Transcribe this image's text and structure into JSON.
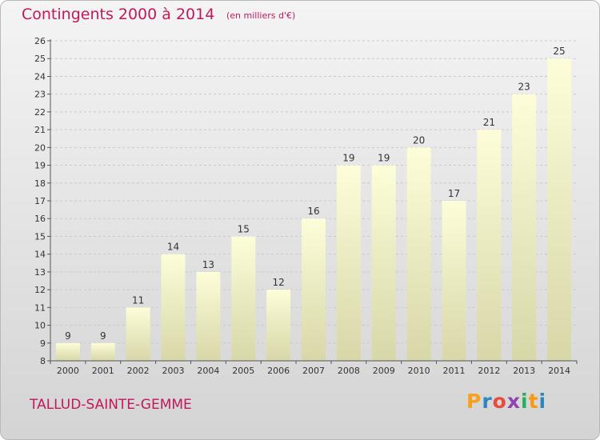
{
  "header": {
    "title": "Contingents 2000 à 2014",
    "unit": "(en milliers d'€)"
  },
  "footer": {
    "commune": "TALLUD-SAINTE-GEMME",
    "logo_letters": [
      "P",
      "r",
      "o",
      "x",
      "i",
      "t",
      "i"
    ],
    "logo_colors": [
      "#f7a11a",
      "#2e86c1",
      "#e74c3c",
      "#8e44ad",
      "#27ae60",
      "#f39c12",
      "#2e86c1"
    ]
  },
  "colors": {
    "accent": "#c2185b",
    "bar_top": "#fdfdd9",
    "bar_bottom": "#d7d7a8",
    "grid": "#c9c9c9",
    "axis": "#555555"
  },
  "chart_data": {
    "type": "bar",
    "categories": [
      "2000",
      "2001",
      "2002",
      "2003",
      "2004",
      "2005",
      "2006",
      "2007",
      "2008",
      "2009",
      "2010",
      "2011",
      "2012",
      "2013",
      "2014"
    ],
    "values": [
      9,
      9,
      11,
      14,
      13,
      15,
      12,
      16,
      19,
      19,
      20,
      17,
      21,
      23,
      25
    ],
    "ylim": [
      8,
      26
    ],
    "yticks": [
      "8",
      "9",
      "10",
      "11",
      "12",
      "13",
      "14",
      "15",
      "16",
      "17",
      "18",
      "19",
      "20",
      "21",
      "22",
      "23",
      "24",
      "25",
      "26"
    ],
    "grid": true,
    "xlabel": "",
    "ylabel": ""
  }
}
